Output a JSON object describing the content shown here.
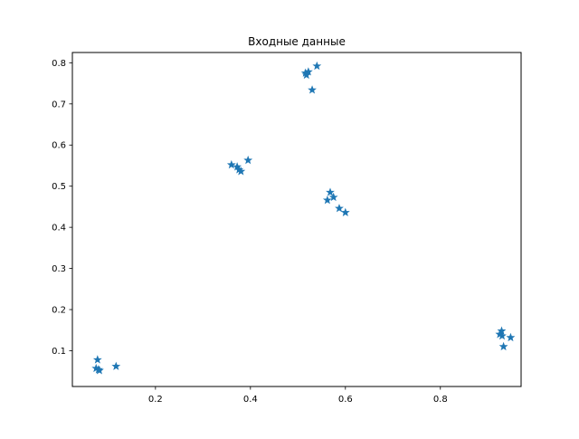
{
  "chart_data": {
    "type": "scatter",
    "title": "Входные данные",
    "xlabel": "",
    "ylabel": "",
    "xlim": [
      0.025,
      0.97
    ],
    "ylim": [
      0.013,
      0.825
    ],
    "x_ticks": [
      0.2,
      0.4,
      0.6,
      0.8
    ],
    "y_ticks": [
      0.1,
      0.2,
      0.3,
      0.4,
      0.5,
      0.6,
      0.7,
      0.8
    ],
    "grid": false,
    "legend": "none",
    "marker": "star",
    "color": "#1f77b4",
    "series": [
      {
        "points": [
          [
            0.075,
            0.057
          ],
          [
            0.08,
            0.054
          ],
          [
            0.078,
            0.078
          ],
          [
            0.082,
            0.052
          ],
          [
            0.117,
            0.062
          ],
          [
            0.36,
            0.552
          ],
          [
            0.372,
            0.547
          ],
          [
            0.376,
            0.54
          ],
          [
            0.38,
            0.536
          ],
          [
            0.395,
            0.563
          ],
          [
            0.516,
            0.775
          ],
          [
            0.518,
            0.77
          ],
          [
            0.522,
            0.778
          ],
          [
            0.53,
            0.734
          ],
          [
            0.54,
            0.792
          ],
          [
            0.562,
            0.466
          ],
          [
            0.568,
            0.485
          ],
          [
            0.575,
            0.473
          ],
          [
            0.587,
            0.446
          ],
          [
            0.6,
            0.436
          ],
          [
            0.925,
            0.14
          ],
          [
            0.929,
            0.148
          ],
          [
            0.93,
            0.136
          ],
          [
            0.933,
            0.11
          ],
          [
            0.948,
            0.132
          ]
        ]
      }
    ]
  }
}
